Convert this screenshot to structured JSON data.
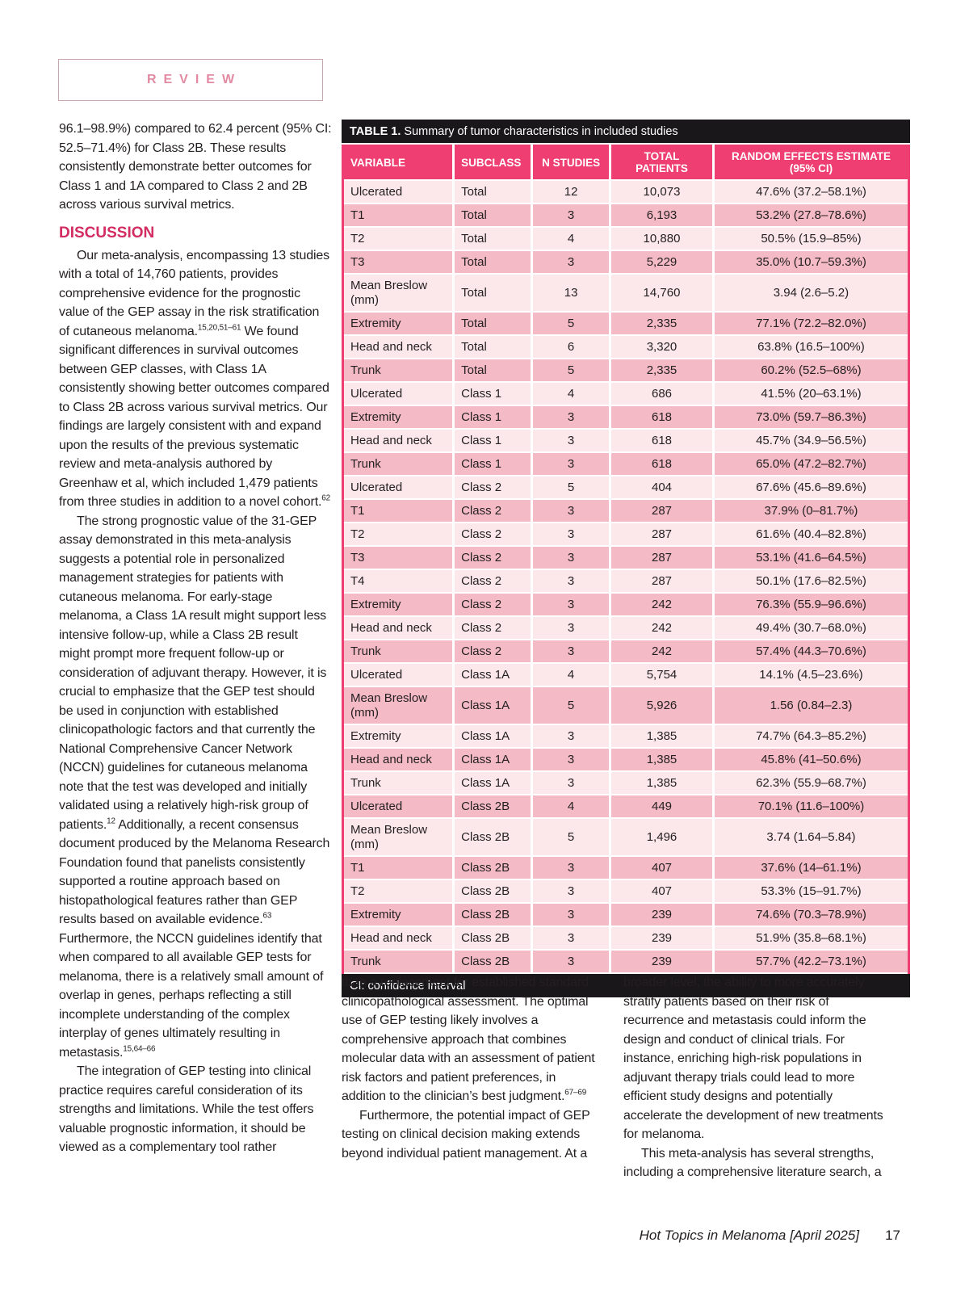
{
  "header": {
    "review_label": "REVIEW"
  },
  "colors": {
    "accent_pink": "#ee3e72",
    "row_light": "#fce8eb",
    "row_dark": "#f4bac5",
    "heading_pink": "#d32c62",
    "review_pink": "#e38aa2",
    "review_border": "#c7a7ae",
    "bar_black": "#1a171b",
    "text": "#231f20"
  },
  "left_column": {
    "blocks": [
      {
        "type": "p",
        "indent": false,
        "segments": [
          {
            "t": "96.1–98.9%) compared to 62.4 percent (95% CI: 52.5–71.4%) for Class 2B. These results consistently demonstrate better outcomes for Class 1 and 1A compared to Class 2 and 2B across various survival metrics."
          }
        ]
      },
      {
        "type": "h",
        "text": "DISCUSSION"
      },
      {
        "type": "p",
        "indent": true,
        "segments": [
          {
            "t": "Our meta-analysis, encompassing 13 studies with a total of 14,760 patients, provides comprehensive evidence for the prognostic value of the GEP assay in the risk stratification of cutaneous melanoma."
          },
          {
            "t": "15,20,51–61",
            "sup": true
          },
          {
            "t": " We found significant differences in survival outcomes between GEP classes, with Class 1A consistently showing better outcomes compared to Class 2B across various survival metrics. Our findings are largely consistent with and expand upon the results of the previous systematic review and meta-analysis authored by Greenhaw et al, which included 1,479 patients from three studies in addition to a novel cohort."
          },
          {
            "t": "62",
            "sup": true
          }
        ]
      },
      {
        "type": "p",
        "indent": true,
        "segments": [
          {
            "t": "The strong prognostic value of the 31-GEP assay demonstrated in this meta-analysis suggests a potential role in personalized management strategies for patients with cutaneous melanoma. For early-stage melanoma, a Class 1A result might support less intensive follow-up, while a Class 2B result might prompt more frequent follow-up or consideration of adjuvant therapy. However, it is crucial to emphasize that the GEP test should be used in conjunction with established clinicopathologic factors and that currently the National Comprehensive Cancer Network (NCCN) guidelines for cutaneous melanoma note that the test was developed and initially validated using a relatively high-risk group of patients."
          },
          {
            "t": "12",
            "sup": true
          },
          {
            "t": " Additionally, a recent consensus document produced by the Melanoma Research Foundation found that panelists consistently supported a routine approach based on histopathological features rather than GEP results based on available evidence."
          },
          {
            "t": "63",
            "sup": true
          },
          {
            "t": " Furthermore, the NCCN guidelines identify that when compared to all available GEP tests for melanoma, there is a relatively small amount of overlap in genes, perhaps reflecting a still incomplete understanding of the complex interplay of genes ultimately resulting in metastasis."
          },
          {
            "t": "15,64–66",
            "sup": true
          }
        ]
      },
      {
        "type": "p",
        "indent": true,
        "segments": [
          {
            "t": "The integration of GEP testing into clinical practice requires careful consideration of its strengths and limitations. While the test offers valuable prognostic information, it should be viewed as a complementary tool rather"
          }
        ]
      }
    ]
  },
  "table": {
    "title_prefix": "TABLE 1.",
    "title_text": " Summary of tumor characteristics in included studies",
    "columns": [
      "VARIABLE",
      "SUBCLASS",
      "N STUDIES",
      "TOTAL PATIENTS",
      "RANDOM EFFECTS ESTIMATE (95% CI)"
    ],
    "rows": [
      [
        "Ulcerated",
        "Total",
        "12",
        "10,073",
        "47.6% (37.2–58.1%)"
      ],
      [
        "T1",
        "Total",
        "3",
        "6,193",
        "53.2% (27.8–78.6%)"
      ],
      [
        "T2",
        "Total",
        "4",
        "10,880",
        "50.5% (15.9–85%)"
      ],
      [
        "T3",
        "Total",
        "3",
        "5,229",
        "35.0% (10.7–59.3%)"
      ],
      [
        "Mean Breslow (mm)",
        "Total",
        "13",
        "14,760",
        "3.94 (2.6–5.2)"
      ],
      [
        "Extremity",
        "Total",
        "5",
        "2,335",
        "77.1% (72.2–82.0%)"
      ],
      [
        "Head and neck",
        "Total",
        "6",
        "3,320",
        "63.8% (16.5–100%)"
      ],
      [
        "Trunk",
        "Total",
        "5",
        "2,335",
        "60.2% (52.5–68%)"
      ],
      [
        "Ulcerated",
        "Class 1",
        "4",
        "686",
        "41.5% (20–63.1%)"
      ],
      [
        "Extremity",
        "Class 1",
        "3",
        "618",
        "73.0% (59.7–86.3%)"
      ],
      [
        "Head and neck",
        "Class 1",
        "3",
        "618",
        "45.7% (34.9–56.5%)"
      ],
      [
        "Trunk",
        "Class 1",
        "3",
        "618",
        "65.0% (47.2–82.7%)"
      ],
      [
        "Ulcerated",
        "Class 2",
        "5",
        "404",
        "67.6% (45.6–89.6%)"
      ],
      [
        "T1",
        "Class 2",
        "3",
        "287",
        "37.9% (0–81.7%)"
      ],
      [
        "T2",
        "Class 2",
        "3",
        "287",
        "61.6% (40.4–82.8%)"
      ],
      [
        "T3",
        "Class 2",
        "3",
        "287",
        "53.1% (41.6–64.5%)"
      ],
      [
        "T4",
        "Class 2",
        "3",
        "287",
        "50.1% (17.6–82.5%)"
      ],
      [
        "Extremity",
        "Class 2",
        "3",
        "242",
        "76.3% (55.9–96.6%)"
      ],
      [
        "Head and neck",
        "Class 2",
        "3",
        "242",
        "49.4% (30.7–68.0%)"
      ],
      [
        "Trunk",
        "Class 2",
        "3",
        "242",
        "57.4% (44.3–70.6%)"
      ],
      [
        "Ulcerated",
        "Class 1A",
        "4",
        "5,754",
        "14.1% (4.5–23.6%)"
      ],
      [
        "Mean Breslow (mm)",
        "Class 1A",
        "5",
        "5,926",
        "1.56 (0.84–2.3)"
      ],
      [
        "Extremity",
        "Class 1A",
        "3",
        "1,385",
        "74.7% (64.3–85.2%)"
      ],
      [
        "Head and neck",
        "Class 1A",
        "3",
        "1,385",
        "45.8% (41–50.6%)"
      ],
      [
        "Trunk",
        "Class 1A",
        "3",
        "1,385",
        "62.3% (55.9–68.7%)"
      ],
      [
        "Ulcerated",
        "Class 2B",
        "4",
        "449",
        "70.1% (11.6–100%)"
      ],
      [
        "Mean Breslow (mm)",
        "Class 2B",
        "5",
        "1,496",
        "3.74 (1.64–5.84)"
      ],
      [
        "T1",
        "Class 2B",
        "3",
        "407",
        "37.6% (14–61.1%)"
      ],
      [
        "T2",
        "Class 2B",
        "3",
        "407",
        "53.3% (15–91.7%)"
      ],
      [
        "Extremity",
        "Class 2B",
        "3",
        "239",
        "74.6% (70.3–78.9%)"
      ],
      [
        "Head and neck",
        "Class 2B",
        "3",
        "239",
        "51.9% (35.8–68.1%)"
      ],
      [
        "Trunk",
        "Class 2B",
        "3",
        "239",
        "57.7% (42.2–73.1%)"
      ]
    ],
    "footnote": "CI: confidence interval"
  },
  "middle_column": {
    "blocks": [
      {
        "type": "p",
        "indent": false,
        "segments": [
          {
            "t": "than a replacement for established standard clinicopathological assessment. The optimal use of GEP testing likely involves a comprehensive approach that combines molecular data with an assessment of patient risk factors and patient preferences, in addition to the clinician’s best judgment."
          },
          {
            "t": "67–69",
            "sup": true
          }
        ]
      },
      {
        "type": "p",
        "indent": true,
        "segments": [
          {
            "t": "Furthermore, the potential impact of GEP testing on clinical decision making extends beyond individual patient management. At a"
          }
        ]
      }
    ]
  },
  "right_column": {
    "blocks": [
      {
        "type": "p",
        "indent": false,
        "segments": [
          {
            "t": "broader level, the ability to more accurately stratify patients based on their risk of recurrence and metastasis could inform the design and conduct of clinical trials. For instance, enriching high-risk populations in adjuvant therapy trials could lead to more efficient study designs and potentially accelerate the development of new treatments for melanoma."
          }
        ]
      },
      {
        "type": "p",
        "indent": true,
        "segments": [
          {
            "t": "This meta-analysis has several strengths, including a comprehensive literature search, a"
          }
        ]
      }
    ]
  },
  "footer": {
    "journal": "Hot Topics in Melanoma [April 2025]",
    "page_number": "17"
  }
}
